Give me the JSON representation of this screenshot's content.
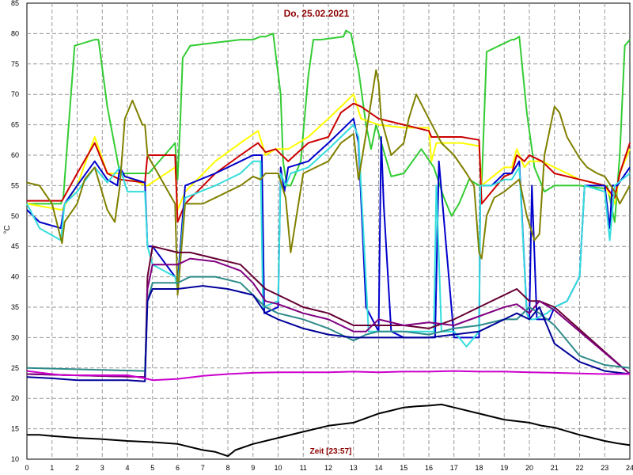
{
  "chart_data": {
    "type": "line",
    "title": "Do, 25.02.2021",
    "xlabel": "Zeit [23:57]",
    "ylabel": "°C",
    "xlim": [
      0,
      24
    ],
    "ylim": [
      10,
      85
    ],
    "x_ticks": [
      "0",
      "1",
      "2",
      "3",
      "4",
      "5",
      "6",
      "7",
      "8",
      "9",
      "10",
      "11",
      "12",
      "13",
      "14",
      "15",
      "16",
      "17",
      "18",
      "19",
      "20",
      "21",
      "22",
      "23",
      "24"
    ],
    "y_ticks": [
      "10",
      "15",
      "20",
      "25",
      "30",
      "35",
      "40",
      "45",
      "50",
      "55",
      "60",
      "65",
      "70",
      "75",
      "80",
      "85"
    ],
    "grid": true,
    "series": [
      {
        "color": "#33cc33",
        "x": [
          0,
          1.35,
          1.45,
          1.9,
          2.7,
          2.85,
          3.2,
          3.7,
          4.7,
          4.75,
          4.85,
          5.9,
          6.0,
          6.1,
          6.2,
          6.5,
          7.5,
          8.5,
          9.0,
          9.3,
          9.5,
          9.8,
          10.1,
          10.2,
          10.35,
          10.5,
          10.9,
          11.2,
          11.4,
          11.7,
          12.6,
          12.7,
          12.9,
          13.2,
          13.5,
          13.7,
          13.9,
          14.5,
          15.0,
          15.7,
          16.2,
          16.6,
          16.9,
          17.2,
          17.6,
          18.0,
          18.1,
          18.3,
          19.3,
          19.4,
          19.6,
          19.9,
          20.2,
          20.6,
          21.0,
          22.0,
          23.0,
          23.1,
          23.4,
          23.6,
          23.8,
          24
        ],
        "values": [
          52,
          52,
          53,
          78,
          79,
          79,
          68,
          57,
          57,
          57,
          57,
          62,
          56,
          65,
          76,
          78,
          78.5,
          79,
          79,
          79.5,
          79.5,
          80,
          70,
          59,
          55,
          55,
          59,
          73,
          79,
          79,
          79.5,
          80.5,
          80,
          74,
          65,
          61,
          65,
          56.5,
          57,
          61,
          58,
          53,
          50,
          52,
          56,
          55,
          55,
          77,
          79,
          79,
          79.5,
          67,
          58,
          54,
          55,
          55,
          54.5,
          55,
          49,
          60,
          78,
          79
        ]
      },
      {
        "color": "#ffff00",
        "x": [
          0,
          1.4,
          2.0,
          2.7,
          3.2,
          3.7,
          4.7,
          4.8,
          5.9,
          6.0,
          6.3,
          7.5,
          8.5,
          9.2,
          9.5,
          9.9,
          10.4,
          11.2,
          12.0,
          12.5,
          13.0,
          13.3,
          14.0,
          15.0,
          16.0,
          16.1,
          16.3,
          17.3,
          18.0,
          18.1,
          19.0,
          19.3,
          19.5,
          19.8,
          20.0,
          20.5,
          21.0,
          22.0,
          23.0,
          23.4,
          23.6,
          24
        ],
        "values": [
          52,
          51,
          55,
          63,
          57,
          57,
          55,
          55,
          58,
          51,
          54,
          59,
          62,
          64,
          60,
          61,
          61,
          63,
          66,
          68,
          70,
          66,
          65,
          64.5,
          64.5,
          59,
          62,
          62,
          61.5,
          55,
          58,
          58,
          61,
          58,
          59,
          59,
          58,
          56,
          55,
          52,
          57,
          61
        ]
      },
      {
        "color": "#cc0000",
        "x": [
          0,
          1.4,
          2.0,
          2.7,
          3.2,
          3.7,
          4.7,
          4.8,
          5.9,
          6.0,
          6.3,
          7.5,
          8.5,
          9.2,
          9.5,
          9.9,
          10.4,
          11.2,
          12.0,
          12.5,
          13.0,
          13.3,
          14.0,
          15.0,
          16.0,
          16.1,
          16.3,
          17.3,
          18.0,
          18.1,
          19.0,
          19.3,
          19.5,
          19.8,
          20.0,
          20.5,
          21.0,
          22.0,
          23.0,
          23.4,
          23.6,
          24
        ],
        "values": [
          52.5,
          52.5,
          57,
          62,
          57,
          56,
          55.5,
          60,
          60,
          49,
          52,
          57,
          60,
          62,
          60.5,
          61,
          59,
          62,
          63,
          67,
          68.5,
          68,
          66,
          65,
          64,
          63,
          63,
          63,
          62.5,
          52,
          56.5,
          57,
          60,
          59,
          60,
          59,
          57,
          56,
          55,
          53,
          57,
          62
        ]
      },
      {
        "color": "#0000cc",
        "x": [
          0,
          0.5,
          1.35,
          1.5,
          2.0,
          2.7,
          3.2,
          3.6,
          3.7,
          3.9,
          4.7,
          4.8,
          5.0,
          5.9,
          6.0,
          6.3,
          7.5,
          8.5,
          9.0,
          9.35,
          9.45,
          10.0,
          10.1,
          10.25,
          10.4,
          11.2,
          12.0,
          12.5,
          13.0,
          13.2,
          13.5,
          14.0,
          14.1,
          14.2,
          14.5,
          15.0,
          16.0,
          16.2,
          16.25,
          16.4,
          17.0,
          18.0,
          18.05,
          18.5,
          19.0,
          19.3,
          19.6,
          19.9,
          20.0,
          20.1,
          20.3,
          20.8,
          21.0,
          21.5,
          22.0,
          22.2,
          23.0,
          23.2,
          23.3,
          23.5,
          24
        ],
        "values": [
          51,
          49,
          48,
          52,
          55,
          59,
          56,
          55,
          58,
          56.5,
          55.5,
          45,
          45,
          40,
          39,
          55,
          57,
          59,
          60,
          60,
          34,
          35,
          58,
          54,
          58,
          59,
          62,
          64,
          66,
          62,
          35,
          31,
          63,
          52,
          31,
          30,
          30,
          30,
          30,
          59,
          30,
          30,
          55,
          55,
          57,
          57,
          59,
          34,
          33,
          55,
          33,
          33,
          35,
          36,
          40,
          55,
          55,
          48,
          55,
          55,
          58
        ]
      },
      {
        "color": "#33dddd",
        "x": [
          0,
          0.5,
          1.35,
          1.5,
          2.0,
          2.7,
          3.2,
          3.7,
          4.0,
          4.7,
          4.8,
          5.0,
          5.9,
          6.0,
          6.3,
          7.5,
          8.5,
          9.0,
          9.3,
          9.4,
          10.0,
          10.1,
          10.3,
          10.5,
          11.2,
          12.0,
          12.5,
          13.0,
          13.2,
          13.6,
          14.0,
          14.2,
          14.5,
          15.0,
          16.0,
          16.2,
          16.3,
          16.5,
          17.0,
          17.5,
          18.0,
          18.05,
          18.5,
          19.0,
          19.3,
          19.6,
          19.9,
          20.0,
          20.2,
          20.7,
          21.0,
          21.5,
          22.0,
          22.2,
          23.0,
          23.2,
          23.4,
          24
        ],
        "values": [
          52,
          48,
          46,
          52,
          54,
          58,
          55.5,
          58,
          54,
          54,
          45,
          42,
          40,
          38,
          53,
          55,
          57,
          59,
          59,
          35,
          36,
          57,
          55,
          57,
          58,
          61,
          63,
          65,
          63,
          31,
          31,
          31,
          31,
          31,
          31,
          31,
          55,
          31,
          31,
          28.5,
          31,
          55,
          55,
          56,
          56,
          58,
          34,
          33,
          33,
          34,
          35,
          36,
          40,
          55,
          54,
          46,
          55,
          57
        ]
      },
      {
        "color": "#808000",
        "x": [
          0,
          0.5,
          1.0,
          1.4,
          1.5,
          2.0,
          2.3,
          2.7,
          3.2,
          3.5,
          3.7,
          3.9,
          4.2,
          4.6,
          4.7,
          4.8,
          5.9,
          6.0,
          6.3,
          7.0,
          7.5,
          8.5,
          9.0,
          9.3,
          9.5,
          10.0,
          10.3,
          10.5,
          11.0,
          11.5,
          12.0,
          12.5,
          13.0,
          13.2,
          13.5,
          13.9,
          14.0,
          14.1,
          14.5,
          15.0,
          15.2,
          15.5,
          16.0,
          16.5,
          17.0,
          17.5,
          17.8,
          18.0,
          18.1,
          18.3,
          18.6,
          19.0,
          19.3,
          19.6,
          19.9,
          20.2,
          20.4,
          20.6,
          21.0,
          21.2,
          21.5,
          22.0,
          22.3,
          22.7,
          23.0,
          23.4,
          23.6,
          24
        ],
        "values": [
          55.5,
          55,
          52,
          45.5,
          49,
          52,
          56,
          58,
          51,
          49,
          55,
          66,
          69,
          65,
          65,
          60,
          52,
          37,
          52,
          52,
          53,
          55,
          56.5,
          56,
          57,
          57,
          53,
          44,
          57,
          58,
          59,
          62,
          63.5,
          56,
          63.5,
          74,
          72,
          66,
          60,
          62,
          66,
          70,
          66,
          62,
          60,
          57,
          55,
          44,
          43,
          50,
          53,
          54,
          55,
          56,
          50,
          46,
          47,
          60,
          68,
          67,
          63,
          59.5,
          58,
          57,
          56.5,
          54,
          52,
          55
        ]
      },
      {
        "color": "#660033",
        "x": [
          0,
          4.7,
          4.8,
          5.0,
          6.0,
          6.5,
          7.5,
          8.5,
          9.0,
          9.5,
          10.0,
          11.0,
          12.0,
          13.0,
          13.5,
          14.0,
          15.0,
          16.0,
          17.0,
          18.0,
          19.0,
          19.5,
          20.0,
          20.4,
          21.0,
          24
        ],
        "values": [
          24,
          23.5,
          40,
          45,
          44,
          44,
          43,
          42,
          40,
          38,
          37,
          35,
          34,
          32,
          32,
          32,
          32,
          31.5,
          33,
          35,
          37,
          38,
          36,
          36,
          35,
          24
        ]
      },
      {
        "color": "#800080",
        "x": [
          0,
          4.7,
          4.8,
          5.0,
          6.0,
          6.5,
          7.5,
          8.5,
          9.0,
          9.5,
          10.0,
          11.0,
          12.0,
          13.0,
          13.5,
          14.0,
          15.0,
          16.0,
          17.0,
          18.0,
          19.0,
          19.5,
          20.0,
          20.4,
          21.0,
          24
        ],
        "values": [
          24,
          23.5,
          38,
          42,
          42,
          43,
          42.5,
          41,
          39,
          36,
          35.5,
          34,
          33,
          31,
          31,
          33,
          32,
          32.5,
          32,
          33.5,
          35,
          35.5,
          34,
          36,
          34.5,
          24
        ]
      },
      {
        "color": "#2e8b8b",
        "x": [
          0,
          4.7,
          4.8,
          5.0,
          6.0,
          6.5,
          7.5,
          8.5,
          9.0,
          9.5,
          10.0,
          11.0,
          12.0,
          13.0,
          13.5,
          14.0,
          15.0,
          16.0,
          17.0,
          18.0,
          19.0,
          19.5,
          20.0,
          20.4,
          21.0,
          22.0,
          23.0,
          24
        ],
        "values": [
          25,
          24.5,
          36,
          39,
          39,
          40,
          40,
          39,
          37,
          35,
          34,
          33,
          31.5,
          29.5,
          30.5,
          31,
          31,
          30.5,
          31.5,
          32,
          33,
          33,
          35,
          34,
          32,
          27,
          25.5,
          25
        ]
      },
      {
        "color": "#000099",
        "x": [
          0,
          1.0,
          2.0,
          3.0,
          4.0,
          4.7,
          4.8,
          5.0,
          6.0,
          7.0,
          8.0,
          9.0,
          9.5,
          10.0,
          11.0,
          12.0,
          13.0,
          14.0,
          15.0,
          16.0,
          17.0,
          18.0,
          19.0,
          19.5,
          20.0,
          20.4,
          21.0,
          22.0,
          23.0,
          24
        ],
        "values": [
          23.5,
          23.3,
          23,
          23,
          23,
          22.8,
          36,
          38,
          38,
          38.5,
          38,
          37,
          34,
          33,
          31.5,
          30.5,
          30,
          30,
          30,
          30,
          30.5,
          31,
          33,
          34,
          33,
          35,
          29,
          26,
          24.5,
          24
        ]
      },
      {
        "color": "#cc00cc",
        "x": [
          0,
          1.0,
          1.5,
          2.0,
          4.0,
          4.7,
          5.0,
          6.0,
          7.0,
          8.0,
          9.0,
          10.0,
          11.0,
          12.0,
          13.0,
          14.0,
          15.0,
          16.0,
          17.0,
          18.0,
          19.0,
          20.0,
          21.0,
          22.0,
          23.0,
          24
        ],
        "values": [
          24.5,
          24,
          23.8,
          23.8,
          23.8,
          23.3,
          23,
          23.2,
          23.7,
          24,
          24.2,
          24.3,
          24.3,
          24.3,
          24.4,
          24.3,
          24.4,
          24.4,
          24.5,
          24.4,
          24.4,
          24.3,
          24.2,
          24.1,
          24,
          24
        ]
      },
      {
        "color": "#000000",
        "x": [
          0,
          0.5,
          1.0,
          2.0,
          3.0,
          4.0,
          5.0,
          6.0,
          7.0,
          7.5,
          8.0,
          8.3,
          9.0,
          10.0,
          11.0,
          12.0,
          13.0,
          14.0,
          14.5,
          15.0,
          15.5,
          16.0,
          16.5,
          17.0,
          18.0,
          19.0,
          20.0,
          20.5,
          21.0,
          21.5,
          22.0,
          22.5,
          23.0,
          23.5,
          24
        ],
        "values": [
          14,
          14,
          13.8,
          13.5,
          13.3,
          13,
          12.8,
          12.5,
          11.5,
          11.2,
          10.5,
          11.5,
          12.5,
          13.5,
          14.5,
          15.5,
          16,
          17.5,
          18,
          18.5,
          18.7,
          18.8,
          19,
          18.5,
          17.5,
          16.5,
          16,
          15.5,
          15.2,
          14.6,
          14,
          13.5,
          13,
          12.6,
          12.3
        ]
      }
    ]
  }
}
